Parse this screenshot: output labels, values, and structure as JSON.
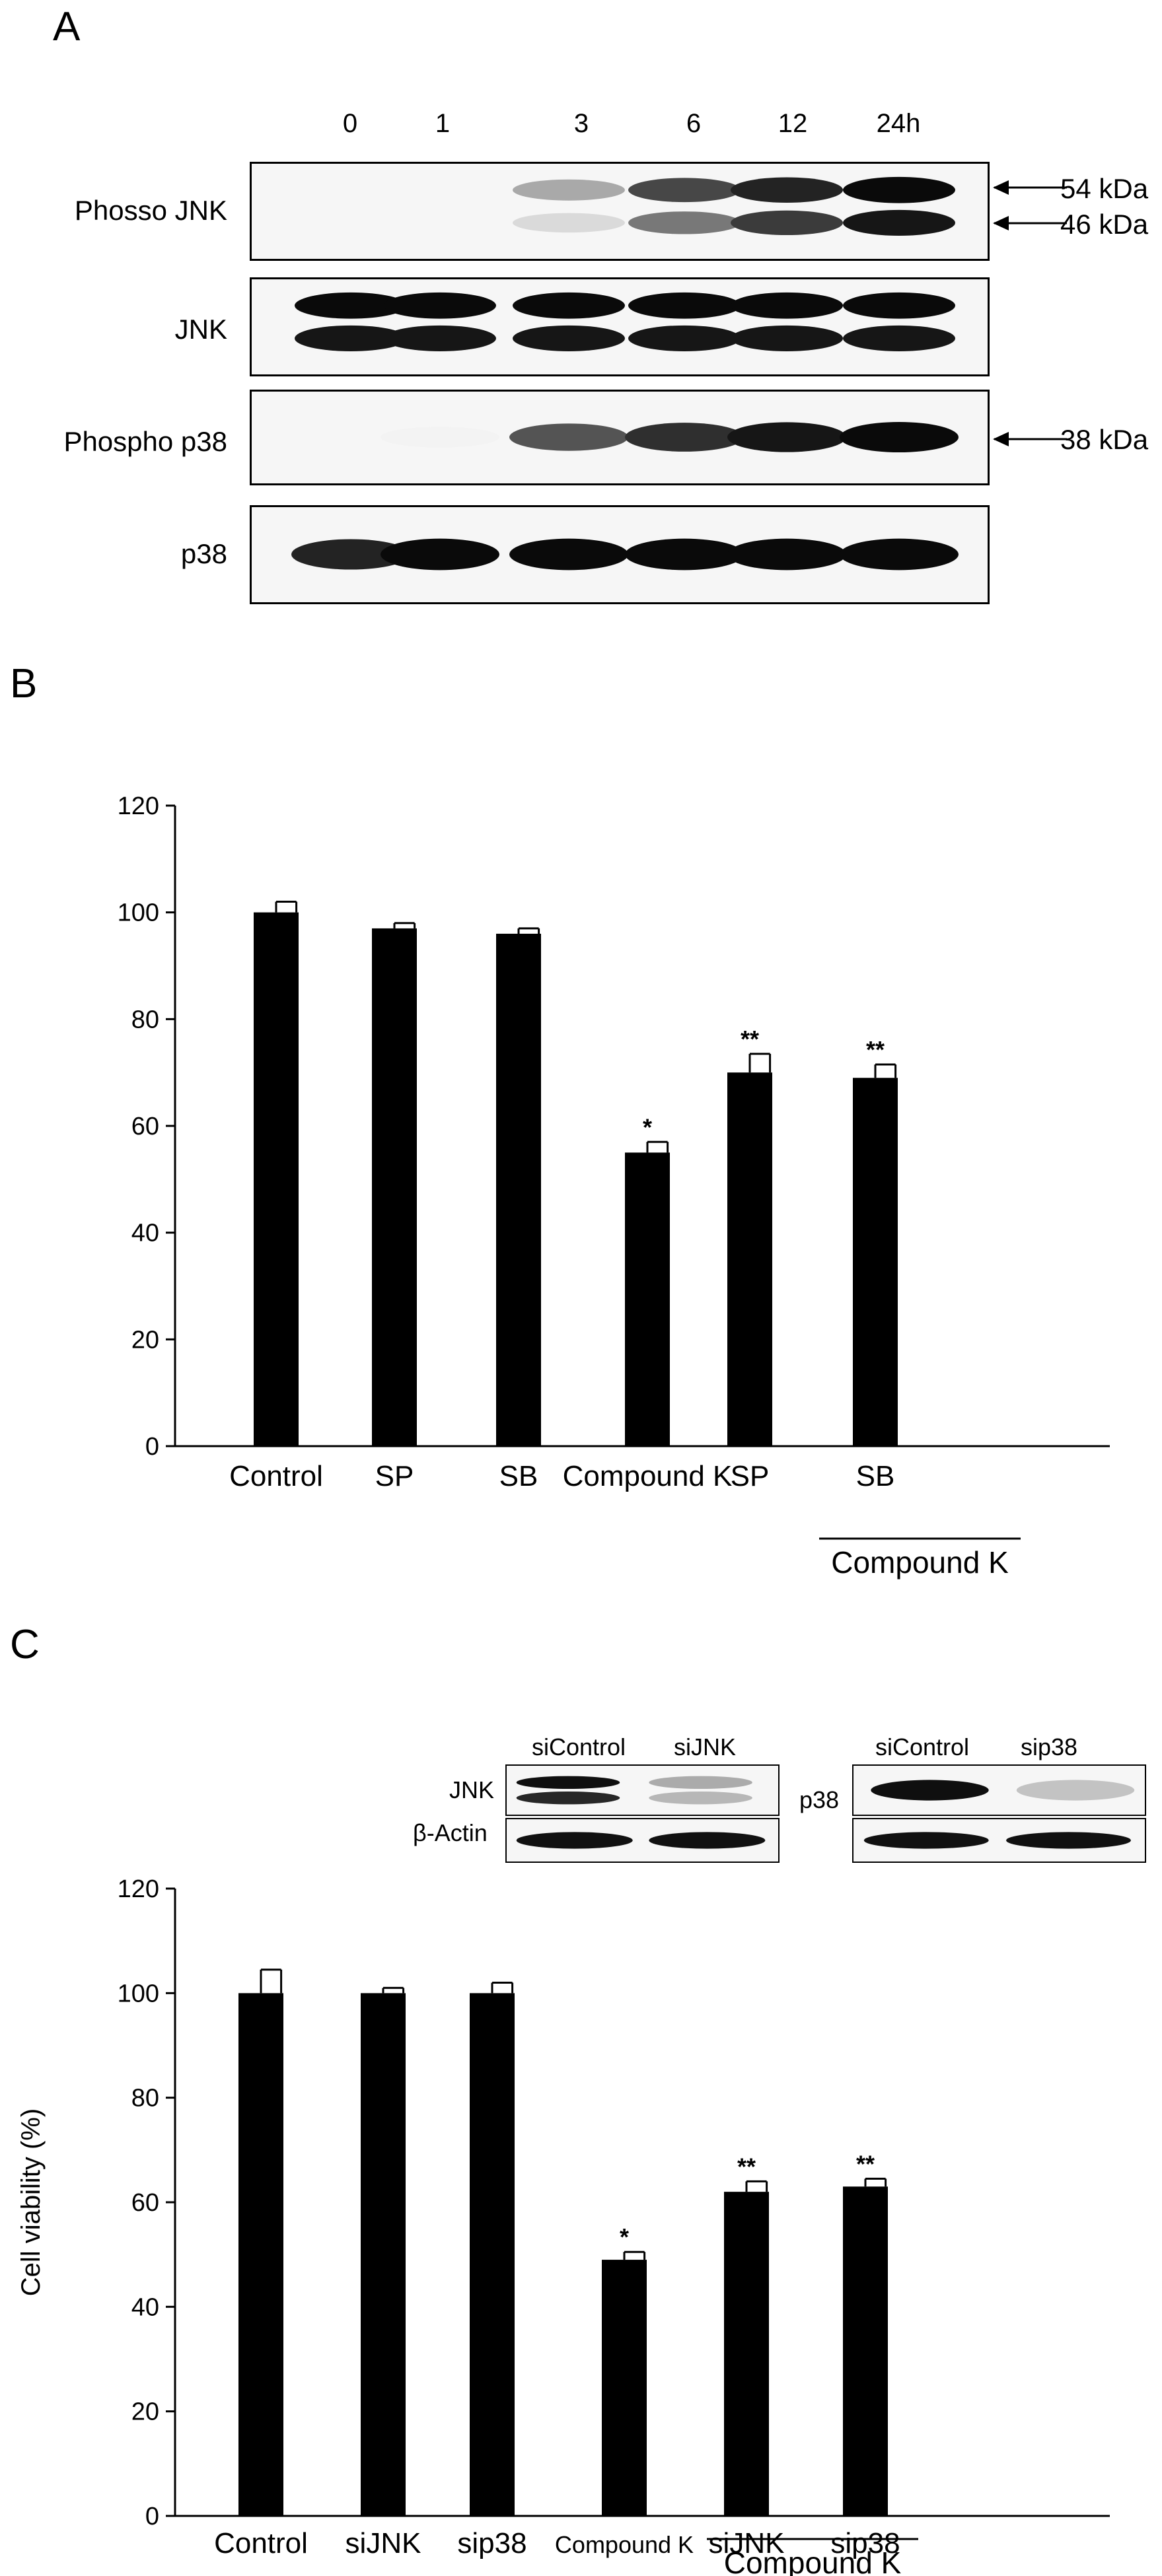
{
  "figure": {
    "panel_a": {
      "letter": "A",
      "time_labels": [
        "0",
        "1",
        "3",
        "6",
        "12",
        "24h"
      ],
      "blots": [
        {
          "label": "Phosso JNK",
          "bands": [
            [
              0,
              0
            ],
            [
              0,
              0
            ],
            [
              0.35,
              0.15
            ],
            [
              0.75,
              0.55
            ],
            [
              0.9,
              0.8
            ],
            [
              1,
              0.95
            ]
          ]
        },
        {
          "label": "JNK",
          "bands": [
            [
              1,
              0.95
            ],
            [
              1,
              0.95
            ],
            [
              1,
              0.95
            ],
            [
              1,
              0.95
            ],
            [
              1,
              0.95
            ],
            [
              1,
              0.95
            ]
          ]
        },
        {
          "label": "Phospho p38",
          "bands": [
            [
              0
            ],
            [
              0.05
            ],
            [
              0.7
            ],
            [
              0.85
            ],
            [
              0.95
            ],
            [
              1
            ]
          ]
        },
        {
          "label": "p38",
          "bands": [
            [
              0.9
            ],
            [
              1
            ],
            [
              1
            ],
            [
              1
            ],
            [
              1
            ],
            [
              1
            ]
          ]
        }
      ],
      "markers": {
        "kda54": "54 kDa",
        "kda46": "46 kDa",
        "kda38": "38 kDa"
      }
    },
    "panel_b": {
      "letter": "B",
      "group_label": "Compound K"
    },
    "panel_c": {
      "letter": "C",
      "inset_left": {
        "headers": [
          "siControl",
          "siJNK"
        ],
        "rows": [
          "JNK",
          "β-Actin"
        ]
      },
      "inset_right": {
        "headers": [
          "siControl",
          "sip38"
        ],
        "row": "p38"
      },
      "group_label": "Compound K"
    }
  },
  "chart_data": [
    {
      "type": "bar",
      "categories": [
        "Control",
        "SP",
        "SB",
        "Compound K",
        "SP",
        "SB"
      ],
      "values": [
        100,
        97,
        96,
        55,
        70,
        69
      ],
      "errors": [
        2,
        1,
        1,
        2,
        3.5,
        2.5
      ],
      "significance": [
        "",
        "",
        "",
        "*",
        "**",
        "**"
      ],
      "ylim": [
        0,
        120
      ],
      "yticks": [
        0,
        20,
        40,
        60,
        80,
        100,
        120
      ],
      "ylabel": "",
      "color": "#000000"
    },
    {
      "type": "bar",
      "categories": [
        "Control",
        "siJNK",
        "sip38",
        "Compound K",
        "siJNK",
        "sip38"
      ],
      "values": [
        100,
        100,
        100,
        49,
        62,
        63
      ],
      "errors": [
        4.5,
        1,
        2,
        1.5,
        2,
        1.5
      ],
      "significance": [
        "",
        "",
        "",
        "*",
        "**",
        "**"
      ],
      "ylim": [
        0,
        120
      ],
      "yticks": [
        0,
        20,
        40,
        60,
        80,
        100,
        120
      ],
      "ylabel": "Cell viability (%)",
      "color": "#000000"
    }
  ]
}
